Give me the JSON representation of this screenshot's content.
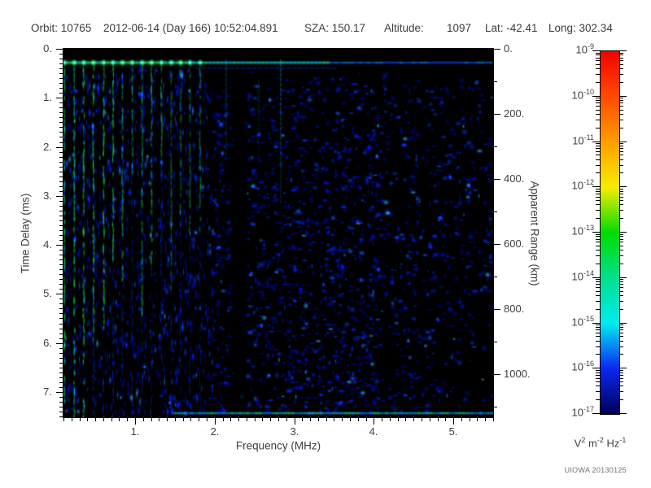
{
  "header": {
    "orbit": "Orbit: 10765",
    "datetime": "2012-06-14 (Day 166) 10:52:04.891",
    "sza": "SZA: 150.17",
    "altitude_label": "Altitude:",
    "altitude_value": "1097",
    "lat": "Lat: -42.41",
    "long": "Long: 302.34"
  },
  "axes": {
    "left": {
      "title": "Time Delay (ms)",
      "tick_labels": [
        "0.",
        "1.",
        "2.",
        "3.",
        "4.",
        "5.",
        "6.",
        "7."
      ]
    },
    "bottom": {
      "title": "Frequency (MHz)",
      "tick_labels": [
        "1.",
        "2.",
        "3.",
        "4.",
        "5."
      ]
    },
    "right": {
      "title": "Apparent Range (km)",
      "tick_labels": [
        "0.",
        "200.",
        "400.",
        "600.",
        "800.",
        "1000."
      ]
    }
  },
  "colorbar": {
    "unit_v": "V",
    "unit_v_exp": "2",
    "unit_m": "m",
    "unit_m_exp": "-2",
    "unit_hz": "Hz",
    "unit_hz_exp": "-1",
    "label_base": "10",
    "exponents": [
      "-9",
      "-10",
      "-11",
      "-12",
      "-13",
      "-14",
      "-15",
      "-16",
      "-17"
    ],
    "colors_top_to_bottom": [
      "#f40000",
      "#ff4a00",
      "#ff9e00",
      "#f8ec00",
      "#00dc00",
      "#00e08e",
      "#00ecf0",
      "#0a28f0",
      "#000058"
    ]
  },
  "credit": "UIOWA 20130125",
  "chart_data": {
    "type": "heatmap",
    "title": "MARSIS AIS ionogram spectrogram (intensity vs frequency and time delay)",
    "x": {
      "label": "Frequency (MHz)",
      "range": [
        0.1,
        5.5
      ],
      "major_ticks": [
        1,
        2,
        3,
        4,
        5
      ],
      "minor_step": 0.1
    },
    "y": {
      "label": "Time Delay (ms)",
      "range": [
        0,
        7.54
      ],
      "major_ticks": [
        0,
        1,
        2,
        3,
        4,
        5,
        6,
        7
      ],
      "minor_step": 0.1,
      "direction": "down"
    },
    "y2": {
      "label": "Apparent Range (km)",
      "range": [
        0,
        1130
      ],
      "major_ticks": [
        0,
        200,
        400,
        600,
        800,
        1000
      ],
      "minor_step": 100
    },
    "z": {
      "label": "V2 m-2 Hz-1",
      "scale": "log",
      "range_min": "1e-17",
      "range_max": "1e-9",
      "decades": 8
    },
    "features": [
      {
        "name": "echo-free-top-band",
        "delay_ms": [
          0,
          0.22
        ],
        "appearance": "solid black band across all frequencies"
      },
      {
        "name": "surface-reflection-line",
        "delay_ms": 0.33,
        "freq_MHz": [
          0.1,
          5.5
        ],
        "appearance": "bright horizontal line; green-cyan at low freq, cyan mid, fading to blue above ~4 MHz"
      },
      {
        "name": "plasma-harmonic-stripes",
        "freq_start_MHz": 0.14,
        "spacing_MHz": 0.12,
        "count": 15,
        "appearance": "vertical green stripes below 1.2 MHz; first few persist full delay range, later ones fade to blue"
      },
      {
        "name": "attenuation-band",
        "freq_MHz": [
          2.25,
          2.5
        ],
        "appearance": "dark vertical band with sparse speckle"
      },
      {
        "name": "bottom-edge-band",
        "delay_ms": [
          7.35,
          7.5
        ],
        "freq_MHz": [
          1.5,
          5.5
        ],
        "appearance": "bright cyan band with green patches"
      },
      {
        "name": "diffuse-echo-noise",
        "appearance": "dense blue speckle blobs over black; sparser and blacker above 4 MHz; vertical streak texture below 2 MHz"
      }
    ],
    "render_seed": 1234
  }
}
